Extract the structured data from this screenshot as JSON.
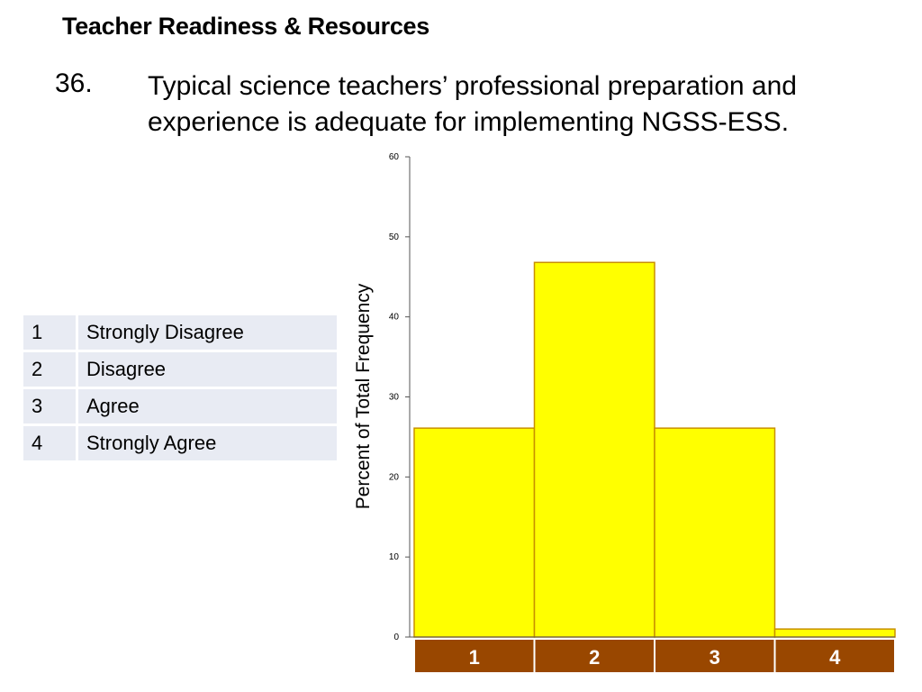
{
  "slide": {
    "title": "Teacher Readiness & Resources",
    "question_number": "36.",
    "question_text": "Typical science teachers’ professional preparation and experience is adequate for implementing NGSS-ESS."
  },
  "legend": [
    {
      "code": "1",
      "label": "Strongly Disagree"
    },
    {
      "code": "2",
      "label": "Disagree"
    },
    {
      "code": "3",
      "label": "Agree"
    },
    {
      "code": "4",
      "label": "Strongly Agree"
    }
  ],
  "chart_data": {
    "type": "bar",
    "categories": [
      "1",
      "2",
      "3",
      "4"
    ],
    "values": [
      26.1,
      46.8,
      26.1,
      1.0
    ],
    "ylabel": "Percent of Total Frequency",
    "xlabel": "",
    "ylim": [
      0,
      60
    ],
    "yticks": [
      0,
      10,
      20,
      30,
      40,
      50,
      60
    ],
    "grid": false,
    "colors": {
      "bar": "#ffff00",
      "bar_border": "#c89000",
      "category_band": "#994700",
      "category_text": "#ffffff"
    }
  }
}
